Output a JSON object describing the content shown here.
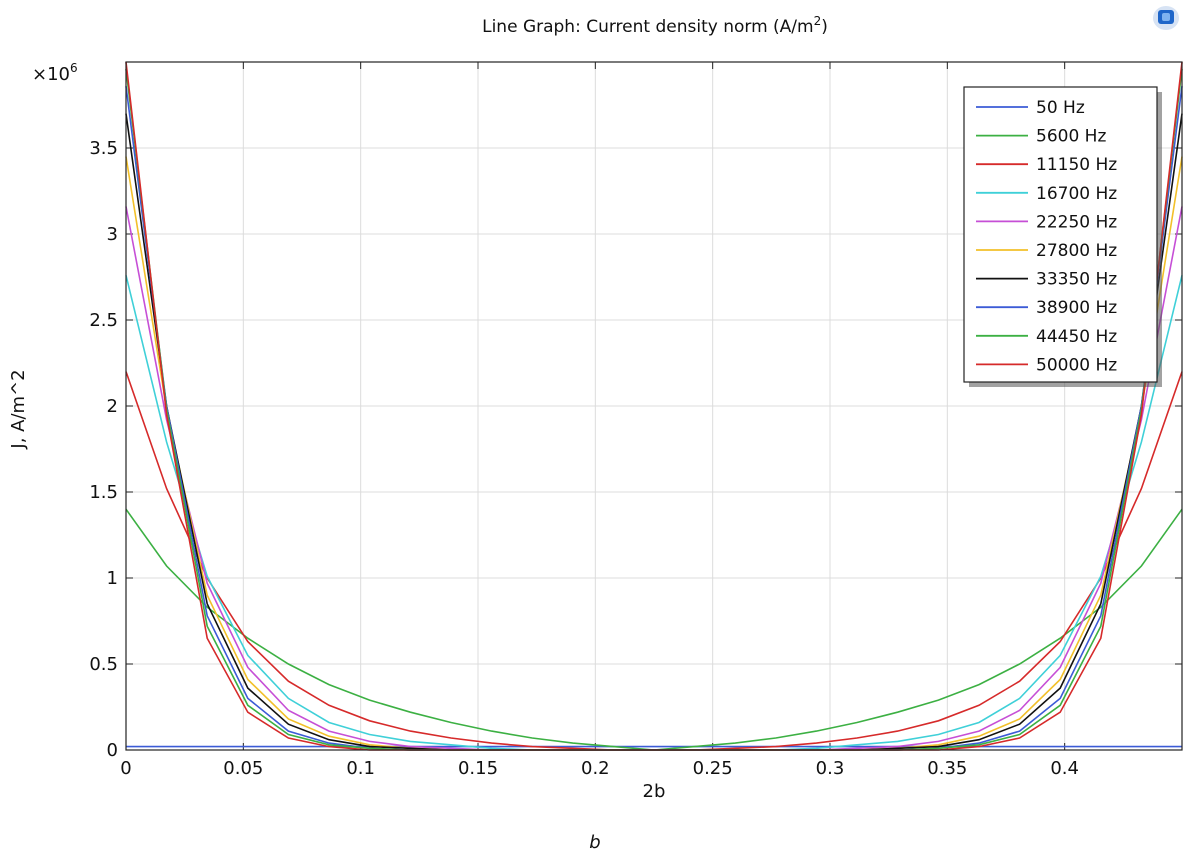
{
  "chart_data": {
    "type": "line",
    "title": "Line Graph: Current density norm (A/m²)",
    "title_main": "Line Graph: Current density norm (A/m",
    "title_sup": "2",
    "title_end": ")",
    "xlabel": "2b",
    "ylabel": "J, A/m^2",
    "y_multiplier": "×10",
    "y_multiplier_exp": "6",
    "xlim": [
      0,
      0.45
    ],
    "ylim": [
      0,
      4.0
    ],
    "grid": true,
    "legend_position": "top-right",
    "x_ticks": [
      "0",
      "0.05",
      "0.1",
      "0.15",
      "0.2",
      "0.25",
      "0.3",
      "0.35",
      "0.4"
    ],
    "y_ticks": [
      "0",
      "0.5",
      "1",
      "1.5",
      "2",
      "2.5",
      "3",
      "3.5"
    ],
    "x": [
      0,
      0.0173,
      0.0346,
      0.0519,
      0.0692,
      0.0865,
      0.1038,
      0.1212,
      0.1385,
      0.1558,
      0.1731,
      0.1904,
      0.2077,
      0.225,
      0.2423,
      0.2596,
      0.2769,
      0.2942,
      0.3115,
      0.3288,
      0.3462,
      0.3635,
      0.3808,
      0.3981,
      0.4154,
      0.4327,
      0.45
    ],
    "series": [
      {
        "name": "50 Hz",
        "color": "#3c5bd6",
        "values": [
          0.02,
          0.02,
          0.02,
          0.02,
          0.02,
          0.02,
          0.02,
          0.02,
          0.02,
          0.02,
          0.02,
          0.02,
          0.02,
          0.02,
          0.02,
          0.02,
          0.02,
          0.02,
          0.02,
          0.02,
          0.02,
          0.02,
          0.02,
          0.02,
          0.02,
          0.02,
          0.02
        ]
      },
      {
        "name": "5600 Hz",
        "color": "#3cb043",
        "values": [
          1.4,
          1.07,
          0.83,
          0.65,
          0.5,
          0.38,
          0.29,
          0.22,
          0.16,
          0.11,
          0.07,
          0.04,
          0.02,
          0.0,
          0.02,
          0.04,
          0.07,
          0.11,
          0.16,
          0.22,
          0.29,
          0.38,
          0.5,
          0.65,
          0.83,
          1.07,
          1.4
        ]
      },
      {
        "name": "11150 Hz",
        "color": "#d62a2a",
        "values": [
          2.2,
          1.52,
          1.0,
          0.63,
          0.4,
          0.26,
          0.17,
          0.11,
          0.07,
          0.04,
          0.02,
          0.01,
          0.0,
          0.0,
          0.0,
          0.01,
          0.02,
          0.04,
          0.07,
          0.11,
          0.17,
          0.26,
          0.4,
          0.63,
          1.0,
          1.52,
          2.2
        ]
      },
      {
        "name": "16700 Hz",
        "color": "#3fd0d8",
        "values": [
          2.76,
          1.79,
          1.01,
          0.55,
          0.3,
          0.16,
          0.09,
          0.05,
          0.03,
          0.01,
          0.0,
          0.0,
          0.0,
          0.0,
          0.0,
          0.0,
          0.0,
          0.01,
          0.03,
          0.05,
          0.09,
          0.16,
          0.3,
          0.55,
          1.01,
          1.79,
          2.76
        ]
      },
      {
        "name": "22250 Hz",
        "color": "#c64fd6",
        "values": [
          3.16,
          1.92,
          0.97,
          0.48,
          0.23,
          0.11,
          0.05,
          0.02,
          0.01,
          0.0,
          0.0,
          0.0,
          0.0,
          0.0,
          0.0,
          0.0,
          0.0,
          0.0,
          0.01,
          0.02,
          0.05,
          0.11,
          0.23,
          0.48,
          0.97,
          1.92,
          3.16
        ]
      },
      {
        "name": "27800 Hz",
        "color": "#f2c02a",
        "values": [
          3.45,
          1.98,
          0.9,
          0.41,
          0.18,
          0.08,
          0.03,
          0.01,
          0.0,
          0.0,
          0.0,
          0.0,
          0.0,
          0.0,
          0.0,
          0.0,
          0.0,
          0.0,
          0.0,
          0.01,
          0.03,
          0.08,
          0.18,
          0.41,
          0.9,
          1.98,
          3.45
        ]
      },
      {
        "name": "33350 Hz",
        "color": "#111111",
        "values": [
          3.7,
          2.0,
          0.85,
          0.36,
          0.15,
          0.06,
          0.02,
          0.01,
          0.0,
          0.0,
          0.0,
          0.0,
          0.0,
          0.0,
          0.0,
          0.0,
          0.0,
          0.0,
          0.0,
          0.01,
          0.02,
          0.06,
          0.15,
          0.36,
          0.85,
          2.0,
          3.7
        ]
      },
      {
        "name": "38900 Hz",
        "color": "#3c5bd6",
        "values": [
          3.86,
          2.0,
          0.78,
          0.3,
          0.11,
          0.04,
          0.01,
          0.0,
          0.0,
          0.0,
          0.0,
          0.0,
          0.0,
          0.0,
          0.0,
          0.0,
          0.0,
          0.0,
          0.0,
          0.0,
          0.01,
          0.04,
          0.11,
          0.3,
          0.78,
          2.0,
          3.86
        ]
      },
      {
        "name": "44450 Hz",
        "color": "#3cb043",
        "values": [
          3.96,
          1.98,
          0.72,
          0.26,
          0.09,
          0.03,
          0.01,
          0.0,
          0.0,
          0.0,
          0.0,
          0.0,
          0.0,
          0.0,
          0.0,
          0.0,
          0.0,
          0.0,
          0.0,
          0.0,
          0.01,
          0.03,
          0.09,
          0.26,
          0.72,
          1.98,
          3.96
        ]
      },
      {
        "name": "50000 Hz",
        "color": "#d62a2a",
        "values": [
          4.0,
          1.95,
          0.65,
          0.22,
          0.07,
          0.02,
          0.0,
          0.0,
          0.0,
          0.0,
          0.0,
          0.0,
          0.0,
          0.0,
          0.0,
          0.0,
          0.0,
          0.0,
          0.0,
          0.0,
          0.0,
          0.02,
          0.07,
          0.22,
          0.65,
          1.95,
          4.0
        ]
      }
    ]
  },
  "caption": "b",
  "corner_icon": "comsol-logo-icon"
}
